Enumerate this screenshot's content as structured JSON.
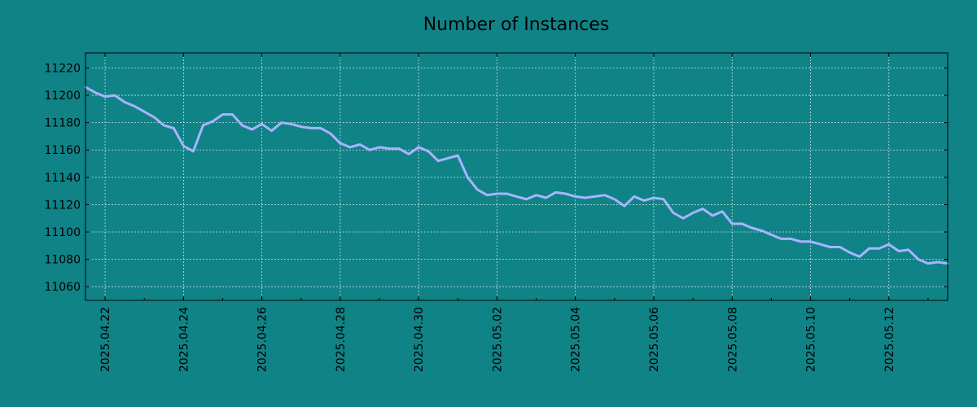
{
  "chart_data": {
    "type": "line",
    "title": "Number of Instances",
    "xlabel": "",
    "ylabel": "",
    "x_range": [
      "2025-04-21 12:00",
      "2025-05-13 12:00"
    ],
    "ylim": [
      11050,
      11231
    ],
    "y_ticks": [
      11060,
      11080,
      11100,
      11120,
      11140,
      11160,
      11180,
      11200,
      11220
    ],
    "x_ticks": [
      "2025.04.22",
      "2025.04.24",
      "2025.04.26",
      "2025.04.28",
      "2025.04.30",
      "2025.05.02",
      "2025.05.04",
      "2025.05.06",
      "2025.05.08",
      "2025.05.10",
      "2025.05.12"
    ],
    "grid": true,
    "colors": {
      "background": "#108387",
      "line": "#a8b4ff",
      "grid": "#c8e0e0",
      "axis": "#000000"
    },
    "series": [
      {
        "x": [
          "2025-04-21 12:00",
          "2025-04-21 18:00",
          "2025-04-22 00:00",
          "2025-04-22 06:00",
          "2025-04-22 12:00",
          "2025-04-22 18:00",
          "2025-04-23 00:00",
          "2025-04-23 06:00",
          "2025-04-23 12:00",
          "2025-04-23 18:00",
          "2025-04-24 00:00",
          "2025-04-24 06:00",
          "2025-04-24 12:00",
          "2025-04-24 18:00",
          "2025-04-25 00:00",
          "2025-04-25 06:00",
          "2025-04-25 12:00",
          "2025-04-25 18:00",
          "2025-04-26 00:00",
          "2025-04-26 06:00",
          "2025-04-26 12:00",
          "2025-04-26 18:00",
          "2025-04-27 00:00",
          "2025-04-27 06:00",
          "2025-04-27 12:00",
          "2025-04-27 18:00",
          "2025-04-28 00:00",
          "2025-04-28 06:00",
          "2025-04-28 12:00",
          "2025-04-28 18:00",
          "2025-04-29 00:00",
          "2025-04-29 06:00",
          "2025-04-29 12:00",
          "2025-04-29 18:00",
          "2025-04-30 00:00",
          "2025-04-30 06:00",
          "2025-04-30 12:00",
          "2025-04-30 18:00",
          "2025-05-01 00:00",
          "2025-05-01 06:00",
          "2025-05-01 12:00",
          "2025-05-01 18:00",
          "2025-05-02 00:00",
          "2025-05-02 06:00",
          "2025-05-02 12:00",
          "2025-05-02 18:00",
          "2025-05-03 00:00",
          "2025-05-03 06:00",
          "2025-05-03 12:00",
          "2025-05-03 18:00",
          "2025-05-04 00:00",
          "2025-05-04 06:00",
          "2025-05-04 12:00",
          "2025-05-04 18:00",
          "2025-05-05 00:00",
          "2025-05-05 06:00",
          "2025-05-05 12:00",
          "2025-05-05 18:00",
          "2025-05-06 00:00",
          "2025-05-06 06:00",
          "2025-05-06 12:00",
          "2025-05-06 18:00",
          "2025-05-07 00:00",
          "2025-05-07 06:00",
          "2025-05-07 12:00",
          "2025-05-07 18:00",
          "2025-05-08 00:00",
          "2025-05-08 06:00",
          "2025-05-08 12:00",
          "2025-05-08 18:00",
          "2025-05-09 00:00",
          "2025-05-09 06:00",
          "2025-05-09 12:00",
          "2025-05-09 18:00",
          "2025-05-10 00:00",
          "2025-05-10 06:00",
          "2025-05-10 12:00",
          "2025-05-10 18:00",
          "2025-05-11 00:00",
          "2025-05-11 06:00",
          "2025-05-11 12:00",
          "2025-05-11 18:00",
          "2025-05-12 00:00",
          "2025-05-12 06:00",
          "2025-05-12 12:00",
          "2025-05-12 18:00",
          "2025-05-13 00:00",
          "2025-05-13 06:00",
          "2025-05-13 12:00"
        ],
        "values": [
          11206,
          11202,
          11199,
          11200,
          11195,
          11192,
          11188,
          11184,
          11178,
          11176,
          11163,
          11159,
          11178,
          11181,
          11186,
          11186,
          11178,
          11175,
          11179,
          11174,
          11180,
          11179,
          11177,
          11176,
          11176,
          11172,
          11165,
          11162,
          11164,
          11160,
          11162,
          11161,
          11161,
          11157,
          11162,
          11159,
          11152,
          11154,
          11156,
          11140,
          11131,
          11127,
          11128,
          11128,
          11126,
          11124,
          11127,
          11125,
          11129,
          11128,
          11126,
          11125,
          11126,
          11127,
          11124,
          11119,
          11126,
          11123,
          11125,
          11124,
          11114,
          11110,
          11114,
          11117,
          11112,
          11115,
          11106,
          11106,
          11103,
          11101,
          11098,
          11095,
          11095,
          11093,
          11093,
          11091,
          11089,
          11089,
          11085,
          11082,
          11088,
          11088,
          11091,
          11086,
          11087,
          11080,
          11077,
          11078,
          11077
        ]
      }
    ]
  }
}
